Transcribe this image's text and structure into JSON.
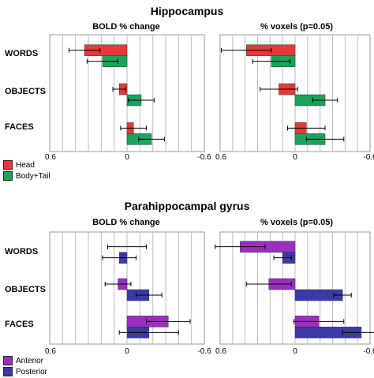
{
  "figure": {
    "panel_titles": [
      "Hippocampus",
      "Parahippocampal gyrus"
    ],
    "column_titles": [
      "BOLD % change",
      "% voxels (p=0.05)"
    ],
    "row_labels": [
      "WORDS",
      "OBJECTS",
      "FACES"
    ],
    "ticks": [
      "0.6",
      "0",
      "-0.6"
    ],
    "legends": [
      {
        "items": [
          {
            "label": "Head",
            "color": "#e8393a"
          },
          {
            "label": "Body+Tail",
            "color": "#1aa35a"
          }
        ]
      },
      {
        "items": [
          {
            "label": "Anterior",
            "color": "#9b2fbf"
          },
          {
            "label": "Posterior",
            "color": "#3b39a8"
          }
        ]
      }
    ]
  },
  "chart_data": [
    {
      "type": "bar",
      "title": "Hippocampus",
      "subtitle": "BOLD % change",
      "categories": [
        "WORDS",
        "OBJECTS",
        "FACES"
      ],
      "xlim": [
        0.6,
        -0.6
      ],
      "series": [
        {
          "name": "Head",
          "color": "#e8393a",
          "values": [
            0.33,
            0.06,
            -0.05
          ],
          "errors": [
            0.12,
            0.05,
            0.1
          ]
        },
        {
          "name": "Body+Tail",
          "color": "#1aa35a",
          "values": [
            0.19,
            -0.11,
            -0.19
          ],
          "errors": [
            0.12,
            0.1,
            0.1
          ]
        }
      ]
    },
    {
      "type": "bar",
      "title": "Hippocampus",
      "subtitle": "% voxels (p=0.05)",
      "categories": [
        "WORDS",
        "OBJECTS",
        "FACES"
      ],
      "xlim": [
        0.6,
        -0.6
      ],
      "series": [
        {
          "name": "Head",
          "color": "#e8393a",
          "values": [
            0.39,
            0.13,
            -0.09
          ],
          "errors": [
            0.2,
            0.15,
            0.15
          ]
        },
        {
          "name": "Body+Tail",
          "color": "#1aa35a",
          "values": [
            0.19,
            -0.24,
            -0.24
          ],
          "errors": [
            0.15,
            0.1,
            0.15
          ]
        }
      ]
    },
    {
      "type": "bar",
      "title": "Parahippocampal gyrus",
      "subtitle": "BOLD % change",
      "categories": [
        "WORDS",
        "OBJECTS",
        "FACES"
      ],
      "xlim": [
        0.6,
        -0.6
      ],
      "series": [
        {
          "name": "Anterior",
          "color": "#9b2fbf",
          "values": [
            0.0,
            0.07,
            -0.32
          ],
          "errors": [
            0.15,
            0.1,
            0.17
          ]
        },
        {
          "name": "Posterior",
          "color": "#3b39a8",
          "values": [
            0.06,
            -0.17,
            -0.17
          ],
          "errors": [
            0.13,
            0.1,
            0.23
          ]
        }
      ]
    },
    {
      "type": "bar",
      "title": "Parahippocampal gyrus",
      "subtitle": "% voxels (p=0.05)",
      "categories": [
        "WORDS",
        "OBJECTS",
        "FACES"
      ],
      "xlim": [
        0.6,
        -0.6
      ],
      "series": [
        {
          "name": "Anterior",
          "color": "#9b2fbf",
          "values": [
            0.44,
            0.21,
            -0.19
          ],
          "errors": [
            0.2,
            0.18,
            0.2
          ]
        },
        {
          "name": "Posterior",
          "color": "#3b39a8",
          "values": [
            0.1,
            -0.38,
            -0.53
          ],
          "errors": [
            0.07,
            0.07,
            0.15
          ]
        }
      ]
    }
  ]
}
